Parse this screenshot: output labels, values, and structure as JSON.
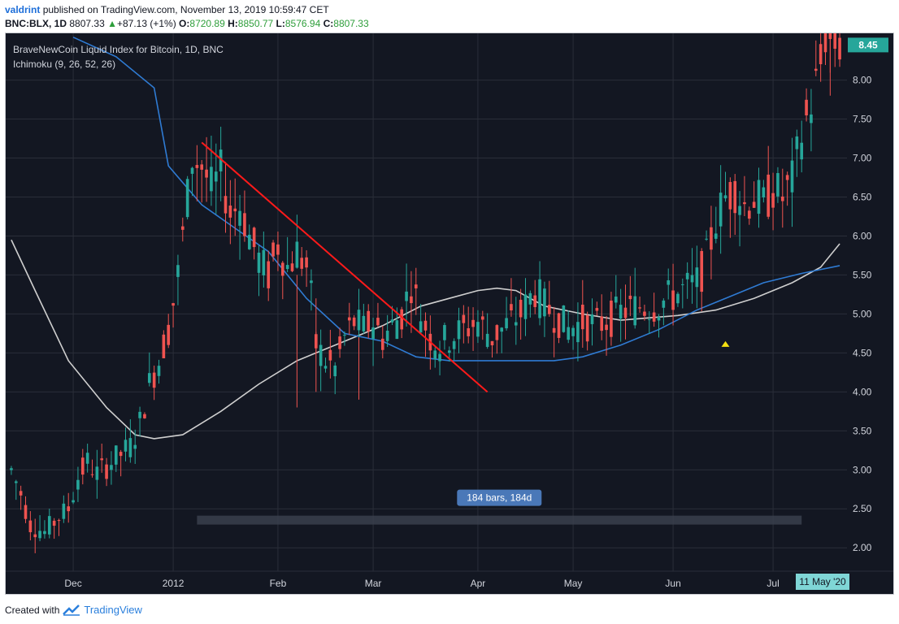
{
  "header": {
    "author": "valdrint",
    "published_text": "published on TradingView.com, November 13, 2019 10:59:47 CET",
    "symbol": "BNC:BLX, 1D",
    "last": "8807.33",
    "change_arrow": "▲",
    "change": "+87.13 (+1%)",
    "open_label": "O:",
    "open": "8720.89",
    "high_label": "H:",
    "high": "8850.77",
    "low_label": "L:",
    "low": "8576.94",
    "close_label": "C:",
    "close": "8807.33"
  },
  "footer": {
    "created_with": "Created with",
    "brand": "TradingView",
    "logo_icon": "tradingview-logo-icon"
  },
  "colors": {
    "background": "#131722",
    "grid": "#2a2e39",
    "up": "#26a69a",
    "down": "#ef5350",
    "kijun": "#2f7bd3",
    "senkou": "#cfcfcf",
    "trendline": "#ff1a1a",
    "axis_text": "#d1d4dc",
    "price_label_bg": "#26a69a",
    "date_label_bg": "#7fd6d6",
    "range_box_bg": "#4a78b8"
  },
  "chart_data": {
    "type": "candlestick",
    "title": "BraveNewCoin Liquid Index for Bitcoin, 1D, BNC",
    "indicator": "Ichimoku (9, 26, 52, 26)",
    "xlabel": "",
    "ylabel": "",
    "ylim": [
      1.7,
      8.6
    ],
    "y_ticks": [
      "8.00",
      "7.50",
      "7.00",
      "6.50",
      "6.00",
      "5.50",
      "5.00",
      "4.50",
      "4.00",
      "3.50",
      "3.00",
      "2.50",
      "2.00"
    ],
    "x_ticks": [
      "Dec",
      "2012",
      "Feb",
      "Mar",
      "Apr",
      "May",
      "Jun",
      "Jul"
    ],
    "x_tick_index": [
      13,
      34,
      56,
      76,
      98,
      118,
      139,
      160
    ],
    "n_bars": 175,
    "last_price_label": "8.45",
    "last_price": 8.45,
    "crosshair_date_label": "11 May '20",
    "range_measure": {
      "label": "184 bars, 184d",
      "from_index": 39,
      "to_index": 166,
      "level": 2.35
    },
    "trendline": {
      "from": [
        40,
        7.2
      ],
      "to": [
        100,
        4.0
      ]
    },
    "marker_up": {
      "index": 150,
      "value": 4.62
    },
    "grid": true,
    "legend_position": "top-left",
    "series": [
      {
        "name": "Kijun",
        "kind": "line",
        "color": "#2f7bd3",
        "points": [
          [
            13,
            8.55
          ],
          [
            22,
            8.3
          ],
          [
            30,
            7.9
          ],
          [
            33,
            6.9
          ],
          [
            40,
            6.4
          ],
          [
            47,
            6.1
          ],
          [
            54,
            5.8
          ],
          [
            62,
            5.2
          ],
          [
            70,
            4.75
          ],
          [
            78,
            4.65
          ],
          [
            85,
            4.45
          ],
          [
            92,
            4.4
          ],
          [
            98,
            4.4
          ],
          [
            106,
            4.4
          ],
          [
            114,
            4.4
          ],
          [
            120,
            4.45
          ],
          [
            128,
            4.6
          ],
          [
            136,
            4.8
          ],
          [
            144,
            5.05
          ],
          [
            150,
            5.2
          ],
          [
            158,
            5.4
          ],
          [
            166,
            5.52
          ],
          [
            174,
            5.62
          ]
        ]
      },
      {
        "name": "Senkou Span B",
        "kind": "line",
        "color": "#cfcfcf",
        "points": [
          [
            0,
            5.95
          ],
          [
            5,
            5.3
          ],
          [
            12,
            4.4
          ],
          [
            20,
            3.8
          ],
          [
            26,
            3.45
          ],
          [
            30,
            3.4
          ],
          [
            36,
            3.45
          ],
          [
            44,
            3.75
          ],
          [
            52,
            4.1
          ],
          [
            60,
            4.4
          ],
          [
            70,
            4.65
          ],
          [
            78,
            4.85
          ],
          [
            86,
            5.1
          ],
          [
            92,
            5.2
          ],
          [
            98,
            5.3
          ],
          [
            102,
            5.33
          ],
          [
            106,
            5.3
          ],
          [
            112,
            5.1
          ],
          [
            120,
            5.0
          ],
          [
            128,
            4.92
          ],
          [
            134,
            4.95
          ],
          [
            140,
            4.98
          ],
          [
            148,
            5.05
          ],
          [
            156,
            5.2
          ],
          [
            164,
            5.4
          ],
          [
            170,
            5.6
          ],
          [
            174,
            5.9
          ]
        ]
      },
      {
        "name": "Price",
        "kind": "candles",
        "anchors": [
          [
            0,
            3.0
          ],
          [
            2,
            2.7
          ],
          [
            4,
            2.3
          ],
          [
            7,
            2.2
          ],
          [
            10,
            2.4
          ],
          [
            12,
            2.5
          ],
          [
            14,
            2.9
          ],
          [
            16,
            3.1
          ],
          [
            18,
            2.95
          ],
          [
            21,
            3.1
          ],
          [
            23,
            3.2
          ],
          [
            25,
            3.3
          ],
          [
            27,
            3.6
          ],
          [
            29,
            4.1
          ],
          [
            31,
            4.4
          ],
          [
            33,
            4.8
          ],
          [
            35,
            5.5
          ],
          [
            37,
            6.5
          ],
          [
            38,
            7.0
          ],
          [
            40,
            6.9
          ],
          [
            42,
            6.6
          ],
          [
            44,
            6.8
          ],
          [
            46,
            6.3
          ],
          [
            48,
            6.4
          ],
          [
            50,
            6.0
          ],
          [
            52,
            5.7
          ],
          [
            54,
            5.5
          ],
          [
            56,
            5.9
          ],
          [
            58,
            5.6
          ],
          [
            60,
            5.8
          ],
          [
            62,
            5.6
          ],
          [
            63,
            5.2
          ],
          [
            64,
            4.6
          ],
          [
            66,
            4.4
          ],
          [
            68,
            4.3
          ],
          [
            70,
            4.7
          ],
          [
            72,
            4.9
          ],
          [
            74,
            4.8
          ],
          [
            76,
            4.9
          ],
          [
            78,
            4.7
          ],
          [
            80,
            4.85
          ],
          [
            82,
            5.0
          ],
          [
            84,
            5.4
          ],
          [
            86,
            5.0
          ],
          [
            88,
            4.7
          ],
          [
            90,
            4.6
          ],
          [
            92,
            4.7
          ],
          [
            95,
            4.8
          ],
          [
            98,
            4.9
          ],
          [
            101,
            4.7
          ],
          [
            104,
            4.85
          ],
          [
            107,
            5.0
          ],
          [
            110,
            5.3
          ],
          [
            112,
            5.1
          ],
          [
            114,
            5.0
          ],
          [
            117,
            4.8
          ],
          [
            120,
            4.9
          ],
          [
            123,
            4.85
          ],
          [
            126,
            4.95
          ],
          [
            129,
            5.05
          ],
          [
            132,
            5.1
          ],
          [
            135,
            5.1
          ],
          [
            138,
            5.2
          ],
          [
            141,
            5.3
          ],
          [
            144,
            5.4
          ],
          [
            146,
            5.7
          ],
          [
            148,
            6.2
          ],
          [
            150,
            6.5
          ],
          [
            152,
            6.6
          ],
          [
            154,
            6.4
          ],
          [
            156,
            6.5
          ],
          [
            158,
            6.4
          ],
          [
            160,
            6.6
          ],
          [
            162,
            6.5
          ],
          [
            164,
            6.7
          ],
          [
            166,
            7.3
          ],
          [
            168,
            7.7
          ],
          [
            170,
            8.2
          ],
          [
            171,
            8.6
          ],
          [
            172,
            8.5
          ],
          [
            174,
            8.45
          ]
        ]
      }
    ]
  }
}
